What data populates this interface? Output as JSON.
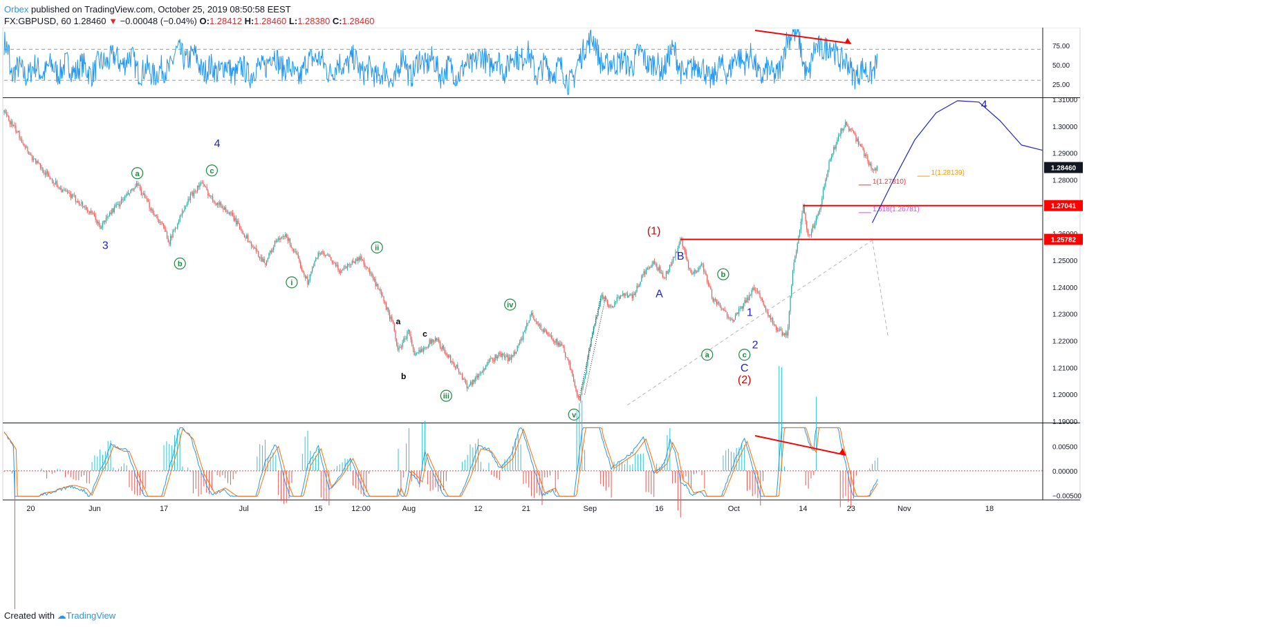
{
  "header": {
    "author": "Orbex",
    "published": "published on TradingView.com, October 25, 2019 08:50:58 EEST"
  },
  "symbol_line": {
    "symbol": "FX:GBPUSD, 60",
    "last": "1.28460",
    "change": "−0.00048 (−0.04%)",
    "o_label": "O:",
    "o": "1.28412",
    "h_label": "H:",
    "h": "1.28460",
    "l_label": "L:",
    "l": "1.28380",
    "c_label": "C:",
    "c": "1.28460"
  },
  "footer": {
    "created_with": "Created with",
    "brand": "TradingView"
  },
  "colors": {
    "up": "#26a69a",
    "down": "#ef5350",
    "rsi": "#2196f3",
    "red_line": "#ff0000",
    "wave_blue": "#1e22c6",
    "wave_green": "#1b8a3e",
    "wave_red": "#d50000",
    "fib_red": "#e53935",
    "fib_orange": "#ff9800",
    "fib_magenta": "#e040fb"
  },
  "chart_data": [
    {
      "type": "line",
      "panel": "oscillator-top",
      "yticks": [
        "75.00",
        "50.00",
        "25.00"
      ],
      "ytick_values": [
        75,
        50,
        25
      ],
      "ylim": [
        8,
        98
      ],
      "guide_levels": [
        70,
        30
      ],
      "annotation": "divergence arrow (red)"
    },
    {
      "type": "candlestick",
      "panel": "price",
      "symbol": "FX:GBPUSD",
      "interval": "60",
      "ylim": [
        1.1895,
        1.3105
      ],
      "yticks": [
        "1.31000",
        "1.30000",
        "1.29000",
        "1.28000",
        "1.27000",
        "1.26000",
        "1.25000",
        "1.24000",
        "1.23000",
        "1.22000",
        "1.21000",
        "1.20000",
        "1.19000"
      ],
      "ytick_values": [
        1.31,
        1.3,
        1.29,
        1.28,
        1.27,
        1.26,
        1.25,
        1.24,
        1.23,
        1.22,
        1.21,
        1.2,
        1.19
      ],
      "xticks": [
        "20",
        "Jun",
        "17",
        "Jul",
        "15",
        "12:00",
        "Aug",
        "12",
        "21",
        "Sep",
        "16",
        "Oct",
        "14",
        "23",
        "Nov",
        "18"
      ],
      "xtick_values": [
        0,
        12,
        25,
        40,
        54,
        62,
        71,
        84,
        93,
        105,
        118,
        132,
        145,
        154,
        164,
        180
      ],
      "xlim": [
        -5,
        190
      ],
      "price_path": [
        [
          -5,
          1.305
        ],
        [
          -2,
          1.296
        ],
        [
          0,
          1.289
        ],
        [
          3,
          1.282
        ],
        [
          6,
          1.276
        ],
        [
          9,
          1.272
        ],
        [
          12,
          1.266
        ],
        [
          13,
          1.262
        ],
        [
          15,
          1.268
        ],
        [
          18,
          1.274
        ],
        [
          20,
          1.278
        ],
        [
          22,
          1.271
        ],
        [
          25,
          1.262
        ],
        [
          26,
          1.257
        ],
        [
          28,
          1.266
        ],
        [
          30,
          1.274
        ],
        [
          32,
          1.279
        ],
        [
          34,
          1.273
        ],
        [
          36,
          1.27
        ],
        [
          38,
          1.266
        ],
        [
          40,
          1.26
        ],
        [
          42,
          1.254
        ],
        [
          44,
          1.249
        ],
        [
          46,
          1.257
        ],
        [
          48,
          1.259
        ],
        [
          50,
          1.251
        ],
        [
          52,
          1.242
        ],
        [
          54,
          1.253
        ],
        [
          56,
          1.251
        ],
        [
          58,
          1.246
        ],
        [
          60,
          1.249
        ],
        [
          62,
          1.251
        ],
        [
          64,
          1.244
        ],
        [
          66,
          1.236
        ],
        [
          68,
          1.226
        ],
        [
          69,
          1.216
        ],
        [
          71,
          1.224
        ],
        [
          72,
          1.214
        ],
        [
          74,
          1.218
        ],
        [
          76,
          1.221
        ],
        [
          78,
          1.215
        ],
        [
          80,
          1.21
        ],
        [
          82,
          1.203
        ],
        [
          84,
          1.207
        ],
        [
          86,
          1.212
        ],
        [
          88,
          1.215
        ],
        [
          90,
          1.213
        ],
        [
          92,
          1.22
        ],
        [
          94,
          1.23
        ],
        [
          96,
          1.224
        ],
        [
          98,
          1.221
        ],
        [
          100,
          1.217
        ],
        [
          102,
          1.205
        ],
        [
          103,
          1.197
        ],
        [
          105,
          1.218
        ],
        [
          107,
          1.237
        ],
        [
          109,
          1.232
        ],
        [
          111,
          1.238
        ],
        [
          113,
          1.236
        ],
        [
          115,
          1.245
        ],
        [
          117,
          1.249
        ],
        [
          119,
          1.244
        ],
        [
          121,
          1.252
        ],
        [
          122,
          1.258
        ],
        [
          124,
          1.244
        ],
        [
          126,
          1.249
        ],
        [
          128,
          1.236
        ],
        [
          130,
          1.231
        ],
        [
          132,
          1.228
        ],
        [
          134,
          1.234
        ],
        [
          136,
          1.24
        ],
        [
          138,
          1.232
        ],
        [
          140,
          1.224
        ],
        [
          142,
          1.222
        ],
        [
          143,
          1.245
        ],
        [
          145,
          1.27
        ],
        [
          146,
          1.258
        ],
        [
          148,
          1.268
        ],
        [
          150,
          1.287
        ],
        [
          152,
          1.298
        ],
        [
          153,
          1.301
        ],
        [
          155,
          1.295
        ],
        [
          157,
          1.288
        ],
        [
          158,
          1.284
        ],
        [
          159,
          1.2846
        ]
      ],
      "horizontal_lines": [
        {
          "label": "1.27041",
          "value": 1.27041,
          "from_x": 145
        },
        {
          "label": "1.25782",
          "value": 1.25782,
          "from_x": 122
        }
      ],
      "last_price_label": {
        "label": "1.28460",
        "value": 1.2846
      },
      "fib_levels": [
        {
          "label": "1(1.27810)",
          "value": 1.2781,
          "x": 157,
          "color": "fib_red"
        },
        {
          "label": "1(1.28139)",
          "value": 1.28139,
          "x": 168,
          "color": "fib_orange"
        },
        {
          "label": "1.618(1.26781)",
          "value": 1.26781,
          "x": 157,
          "color": "fib_magenta"
        }
      ],
      "wave_labels": [
        {
          "text": "3",
          "x": 14,
          "y": 1.2555,
          "color": "wave_blue",
          "circled": false
        },
        {
          "text": "4",
          "x": 35,
          "y": 1.2935,
          "color": "wave_blue",
          "circled": false
        },
        {
          "text": "a",
          "x": 20,
          "y": 1.2825,
          "color": "wave_green",
          "circled": true
        },
        {
          "text": "b",
          "x": 28,
          "y": 1.2488,
          "color": "wave_green",
          "circled": true
        },
        {
          "text": "c",
          "x": 34,
          "y": 1.2835,
          "color": "wave_green",
          "circled": true
        },
        {
          "text": "i",
          "x": 49,
          "y": 1.2418,
          "color": "wave_green",
          "circled": true
        },
        {
          "text": "ii",
          "x": 65,
          "y": 1.2548,
          "color": "wave_green",
          "circled": true
        },
        {
          "text": "a",
          "x": 69,
          "y": 1.2275,
          "color": "wave_black",
          "circled": false
        },
        {
          "text": "c",
          "x": 74,
          "y": 1.2228,
          "color": "wave_black",
          "circled": false
        },
        {
          "text": "b",
          "x": 70,
          "y": 1.207,
          "color": "wave_black",
          "circled": false
        },
        {
          "text": "iii",
          "x": 78,
          "y": 1.1995,
          "color": "wave_green",
          "circled": true
        },
        {
          "text": "iv",
          "x": 90,
          "y": 1.2335,
          "color": "wave_green",
          "circled": true
        },
        {
          "text": "v",
          "x": 102,
          "y": 1.1925,
          "color": "wave_green",
          "circled": true
        },
        {
          "text": "(1)",
          "x": 117,
          "y": 1.261,
          "color": "wave_red",
          "circled": false
        },
        {
          "text": "B",
          "x": 122,
          "y": 1.2515,
          "color": "wave_blue",
          "circled": false
        },
        {
          "text": "A",
          "x": 118,
          "y": 1.2375,
          "color": "wave_blue",
          "circled": false
        },
        {
          "text": "b",
          "x": 130,
          "y": 1.2448,
          "color": "wave_green",
          "circled": true
        },
        {
          "text": "a",
          "x": 127,
          "y": 1.2148,
          "color": "wave_green",
          "circled": true
        },
        {
          "text": "1",
          "x": 135,
          "y": 1.2305,
          "color": "wave_blue",
          "circled": false
        },
        {
          "text": "c",
          "x": 134,
          "y": 1.2148,
          "color": "wave_green",
          "circled": true
        },
        {
          "text": "2",
          "x": 136,
          "y": 1.2185,
          "color": "wave_blue",
          "circled": false
        },
        {
          "text": "C",
          "x": 134,
          "y": 1.2098,
          "color": "wave_blue",
          "circled": false
        },
        {
          "text": "(2)",
          "x": 134,
          "y": 1.2055,
          "color": "wave_red",
          "circled": false
        },
        {
          "text": "4",
          "x": 179,
          "y": 1.308,
          "color": "wave_blue",
          "circled": false
        }
      ],
      "projection": [
        [
          158,
          1.264
        ],
        [
          162,
          1.28
        ],
        [
          166,
          1.295
        ],
        [
          170,
          1.305
        ],
        [
          174,
          1.3095
        ],
        [
          178,
          1.309
        ],
        [
          182,
          1.302
        ],
        [
          186,
          1.293
        ],
        [
          190,
          1.291
        ]
      ],
      "trend_channel": [
        [
          112,
          1.196
        ],
        [
          158,
          1.2575
        ]
      ],
      "gray_dashed_end": [
        [
          158,
          1.2575
        ],
        [
          161,
          1.221
        ]
      ]
    },
    {
      "type": "line",
      "panel": "oscillator-bottom",
      "yticks": [
        "0.00500",
        "0.00000",
        "−0.00500"
      ],
      "ytick_values": [
        0.005,
        0,
        -0.005
      ],
      "ylim": [
        -0.0058,
        0.0097
      ],
      "annotation": "divergence arrow (red)"
    }
  ]
}
